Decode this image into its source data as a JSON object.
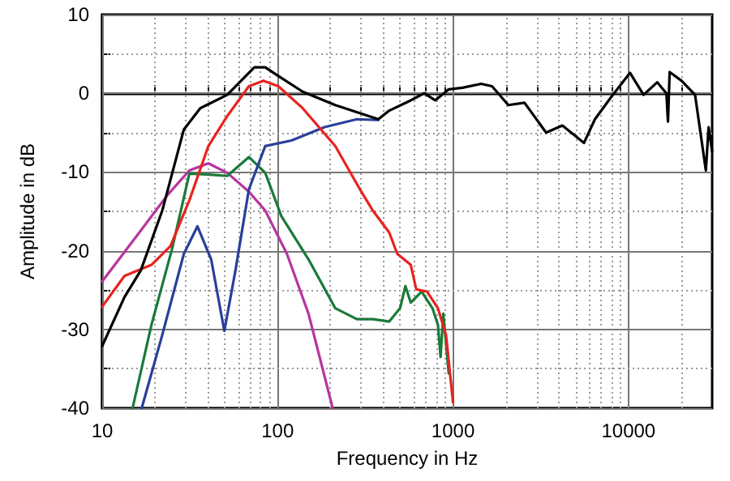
{
  "chart_data": {
    "type": "line",
    "xlabel": "Frequency in Hz",
    "ylabel": "Amplitude in dB",
    "log": "x",
    "grid": true,
    "marker": "none",
    "line_style": "solid",
    "xlim": [
      10,
      30000
    ],
    "ylim": [
      -40,
      10
    ],
    "xticks": [
      10,
      {
        "value": 20,
        "label": null
      },
      {
        "value": 30,
        "label": null
      },
      {
        "value": 40,
        "label": null
      },
      {
        "value": 50,
        "label": null
      },
      {
        "value": 60,
        "label": null
      },
      {
        "value": 70,
        "label": null
      },
      {
        "value": 80,
        "label": null
      },
      {
        "value": 90,
        "label": null
      },
      100,
      {
        "value": 200,
        "label": null
      },
      {
        "value": 300,
        "label": null
      },
      {
        "value": 400,
        "label": null
      },
      {
        "value": 500,
        "label": null
      },
      {
        "value": 600,
        "label": null
      },
      {
        "value": 700,
        "label": null
      },
      {
        "value": 800,
        "label": null
      },
      {
        "value": 900,
        "label": null
      },
      1000,
      {
        "value": 2000,
        "label": null
      },
      {
        "value": 3000,
        "label": null
      },
      {
        "value": 4000,
        "label": null
      },
      {
        "value": 5000,
        "label": null
      },
      {
        "value": 6000,
        "label": null
      },
      {
        "value": 7000,
        "label": null
      },
      {
        "value": 8000,
        "label": null
      },
      {
        "value": 9000,
        "label": null
      },
      10000,
      {
        "value": 20000,
        "label": null
      }
    ],
    "yticks": [
      -40,
      {
        "value": -35,
        "label": null
      },
      -30,
      {
        "value": -25,
        "label": null
      },
      -20,
      {
        "value": -15,
        "label": null
      },
      -10,
      {
        "value": -5,
        "label": null
      },
      0,
      {
        "value": 5,
        "label": null
      },
      10
    ],
    "series": [
      {
        "color": "#b8359f",
        "x": [
          10,
          15.4,
          23.6,
          31.4,
          40.3,
          51.6,
          68.6,
          85,
          113,
          150,
          206
        ],
        "values": [
          -23.9,
          -18.4,
          -12.9,
          -9.8,
          -8.9,
          -10.1,
          -12.5,
          -14.9,
          -20.4,
          -28,
          -40
        ]
      },
      {
        "color": "#1a7a3a",
        "x": [
          14.9,
          19.1,
          25,
          31.4,
          38.8,
          51.6,
          68.6,
          85,
          105,
          150,
          213,
          283,
          349,
          433,
          499,
          535,
          574,
          662,
          763,
          820,
          849,
          880,
          945
        ],
        "values": [
          -40,
          -29.4,
          -19.8,
          -10.2,
          -10.3,
          -10.5,
          -8.1,
          -10.1,
          -15.6,
          -21.1,
          -27.3,
          -28.7,
          -28.7,
          -29,
          -27.3,
          -24.5,
          -26.6,
          -25.2,
          -27.3,
          -29.4,
          -33.5,
          -28,
          -35.6
        ]
      },
      {
        "color": "#2a3f9a",
        "x": [
          16.8,
          22,
          29.2,
          34.9,
          41.8,
          49.7,
          57.5,
          68.6,
          85,
          120,
          185,
          283,
          375
        ],
        "values": [
          -40,
          -30.7,
          -20.4,
          -16.9,
          -21.1,
          -30.2,
          -22.5,
          -12.2,
          -6.7,
          -6,
          -4.3,
          -3.3,
          -3.4
        ]
      },
      {
        "color": "#e8231f",
        "x": [
          10,
          13.4,
          19.1,
          24.5,
          31.4,
          40.3,
          51.6,
          68.6,
          83,
          101,
          139,
          213,
          300,
          349,
          433,
          481,
          574,
          617,
          711,
          820,
          912,
          1000
        ],
        "values": [
          -27.1,
          -23.2,
          -21.8,
          -19.4,
          -13.6,
          -6.7,
          -2.9,
          0.9,
          1.6,
          0.9,
          -1.9,
          -6.7,
          -12.5,
          -14.9,
          -17.7,
          -20.4,
          -21.8,
          -24.9,
          -25.2,
          -27.3,
          -30.7,
          -39.3
        ]
      },
      {
        "color": "#000000",
        "x": [
          10,
          13.4,
          16.6,
          22,
          29.2,
          36.2,
          51.6,
          73.7,
          85,
          101,
          139,
          213,
          375,
          433,
          574,
          685,
          791,
          945,
          1130,
          1447,
          1668,
          2066,
          2555,
          3394,
          4200,
          5580,
          6440,
          7960,
          10200,
          12190,
          14580,
          16450,
          16800,
          17170,
          20050,
          23970,
          27620,
          28640,
          30000
        ],
        "values": [
          -32.1,
          -25.9,
          -22.5,
          -14.9,
          -4.6,
          -1.9,
          -0.2,
          3.3,
          3.3,
          2.2,
          0.2,
          -1.5,
          -3.3,
          -2.2,
          -0.9,
          0,
          -0.9,
          0.5,
          0.7,
          1.2,
          0.9,
          -1.5,
          -1.2,
          -5,
          -4.1,
          -6.3,
          -3.3,
          -0.5,
          2.6,
          -0.2,
          1.4,
          0,
          -3.6,
          2.7,
          1.6,
          -0.2,
          -9.8,
          -4.3,
          -7.4
        ]
      }
    ]
  }
}
